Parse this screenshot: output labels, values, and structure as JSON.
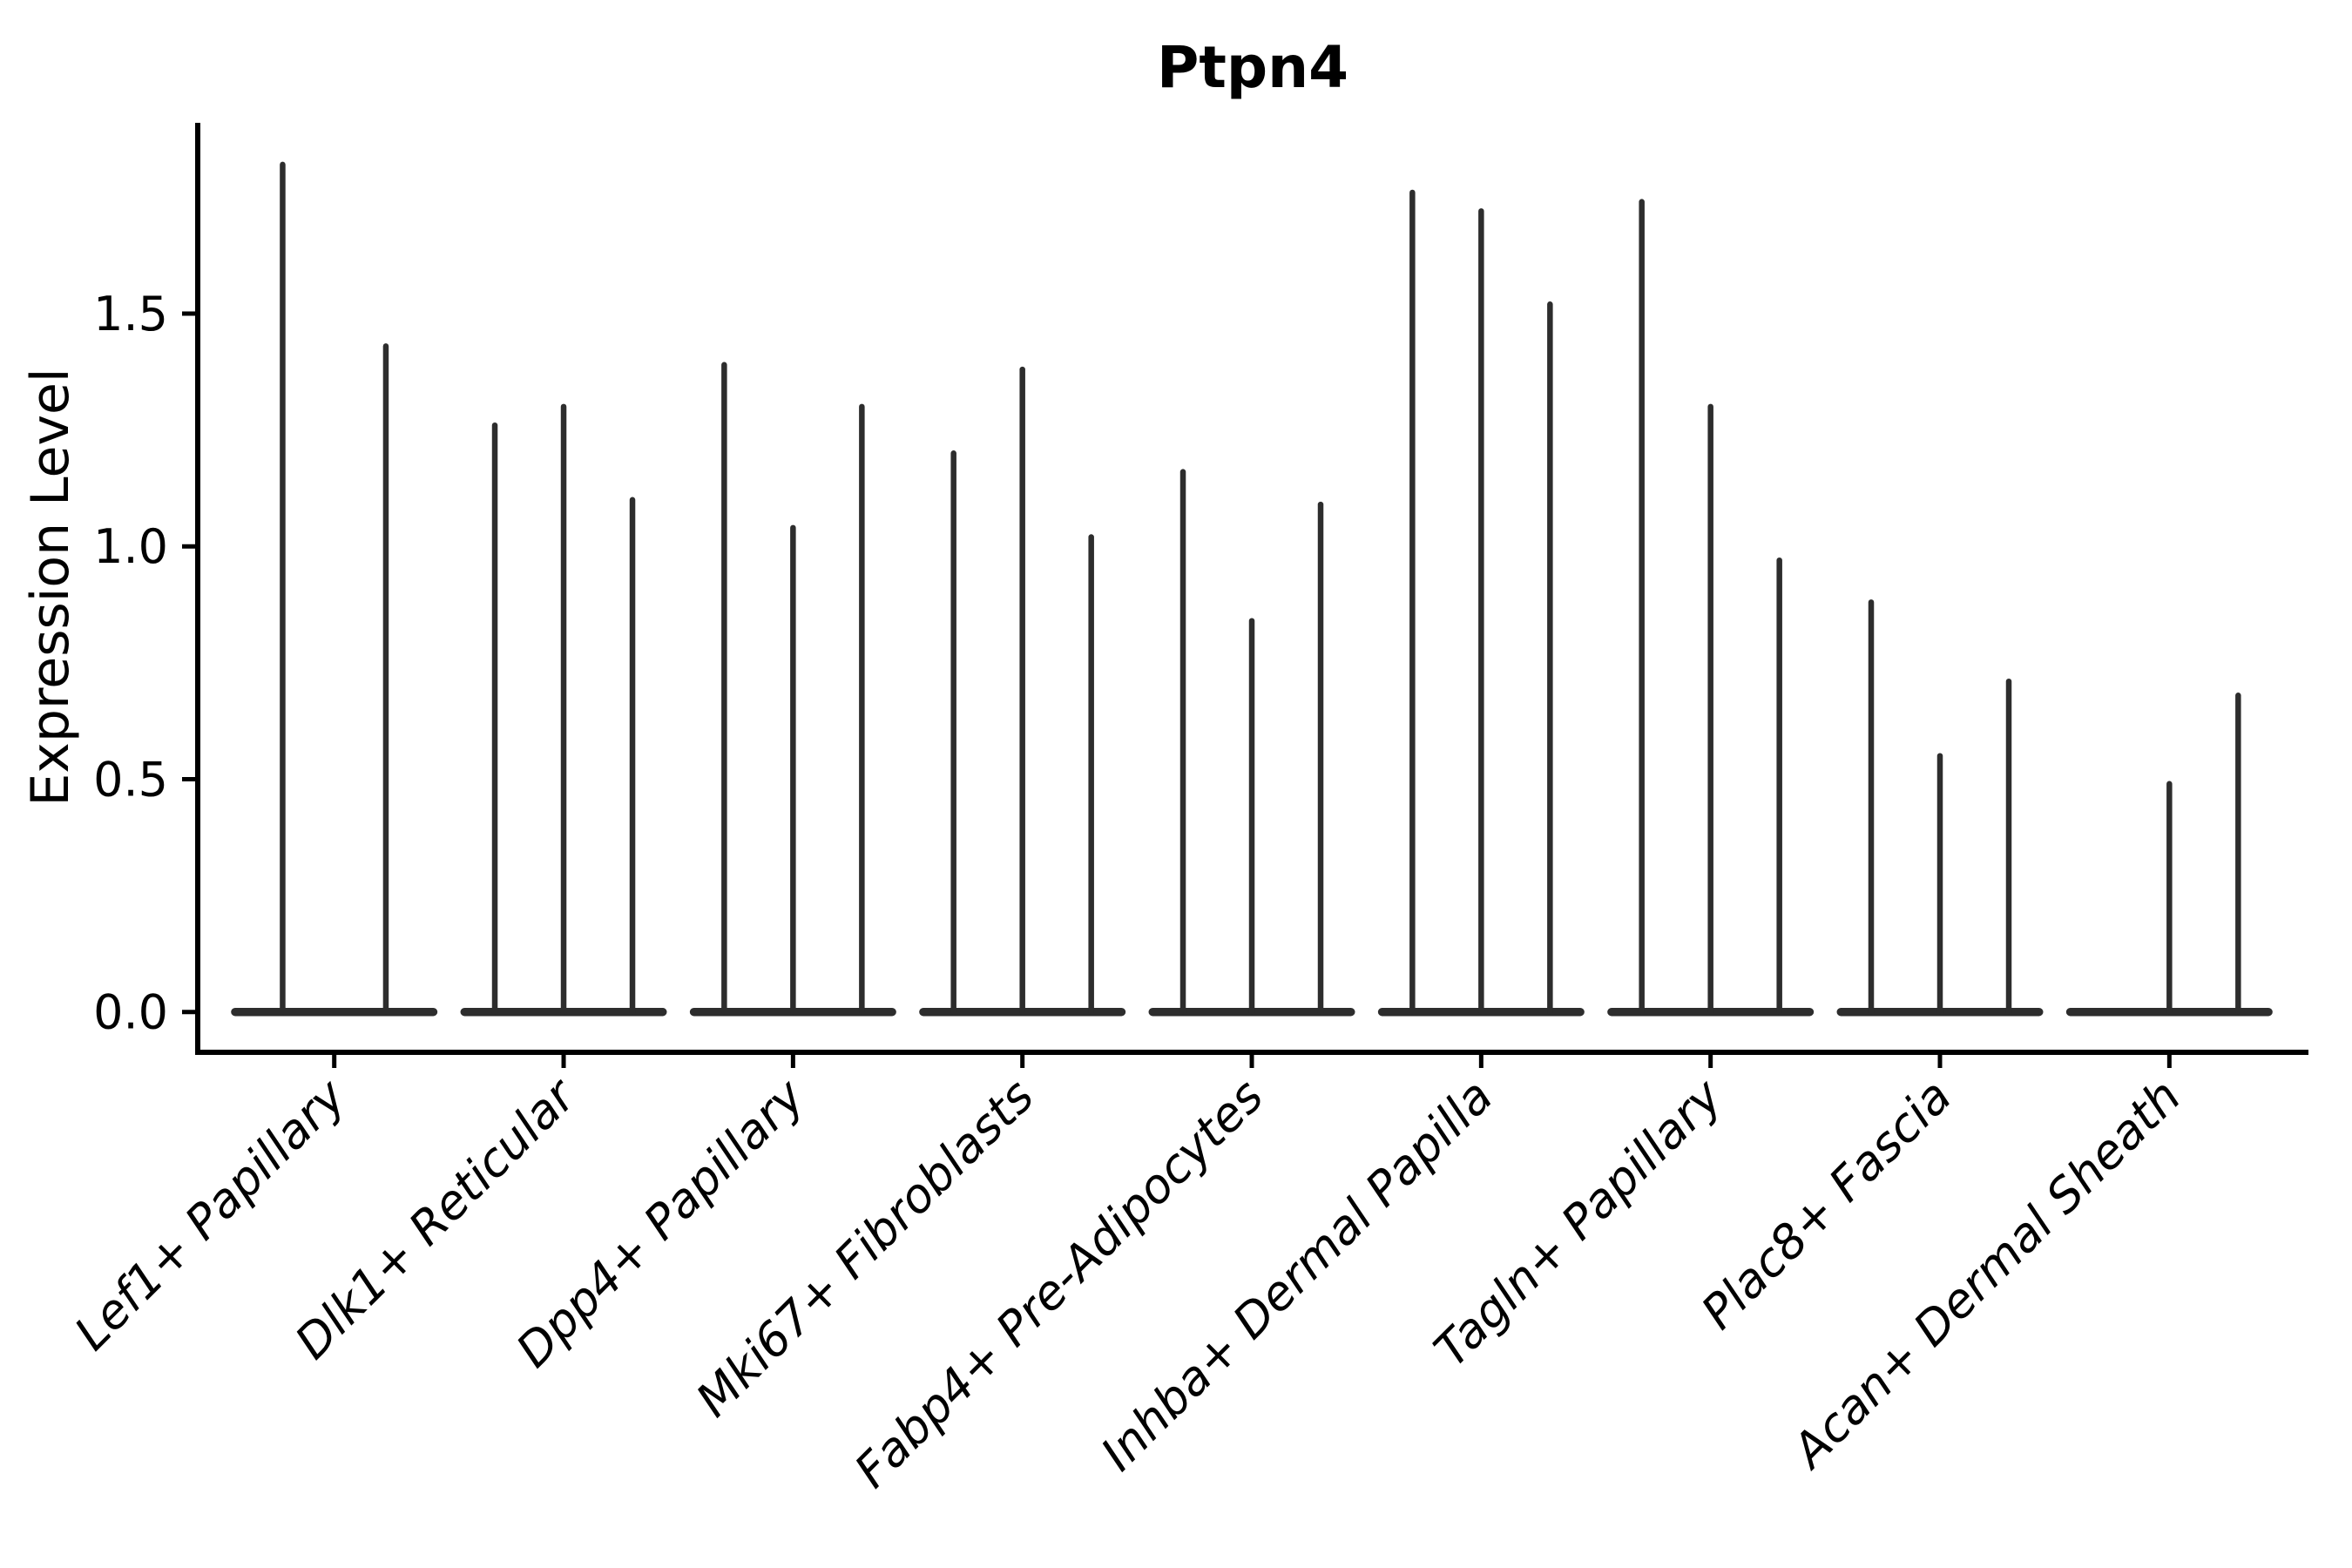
{
  "page": {
    "background_color": "#ffffff"
  },
  "chart_data": {
    "type": "violin",
    "title": "Ptpn4",
    "xlabel": "",
    "ylabel": "Expression Level",
    "ylim": [
      -0.09,
      1.91
    ],
    "grid": false,
    "legend_position": "none",
    "violin_color": "#2d2d2d",
    "axis_color": "#000000",
    "x_label_rotation_deg": 45,
    "yticks": [
      {
        "value": 0.0,
        "label": "0.0"
      },
      {
        "value": 0.5,
        "label": "0.5"
      },
      {
        "value": 1.0,
        "label": "1.0"
      },
      {
        "value": 1.5,
        "label": "1.5"
      }
    ],
    "groups": [
      {
        "category": "Lef1+ Papillary",
        "violin_maxima": [
          1.82,
          1.43
        ]
      },
      {
        "category": "Dlk1+ Reticular",
        "violin_maxima": [
          1.26,
          1.3,
          1.1
        ]
      },
      {
        "category": "Dpp4+ Papillary",
        "violin_maxima": [
          1.39,
          1.04,
          1.3
        ]
      },
      {
        "category": "Mki67+ Fibroblasts",
        "violin_maxima": [
          1.2,
          1.38,
          1.02
        ]
      },
      {
        "category": "Fabp4+ Pre-Adipocytes",
        "violin_maxima": [
          1.16,
          0.84,
          1.09
        ]
      },
      {
        "category": "Inhba+ Dermal Papilla",
        "violin_maxima": [
          1.76,
          1.72,
          1.52
        ]
      },
      {
        "category": "Tagln+ Papillary",
        "violin_maxima": [
          1.74,
          1.3,
          0.97
        ]
      },
      {
        "category": "Plac8+ Fascia",
        "violin_maxima": [
          0.88,
          0.55,
          0.71
        ]
      },
      {
        "category": "Acan+ Dermal Sheath",
        "violin_maxima": [
          0.0,
          0.49,
          0.68
        ]
      }
    ],
    "note": "Sparse-expression violins: each violin collapses to a flat base at 0 with a thin spike rising to its maximum expression value. Groups with 2 maxima have two dodged violins; a maximum of 0.0 is a flat (invisible) violin."
  }
}
